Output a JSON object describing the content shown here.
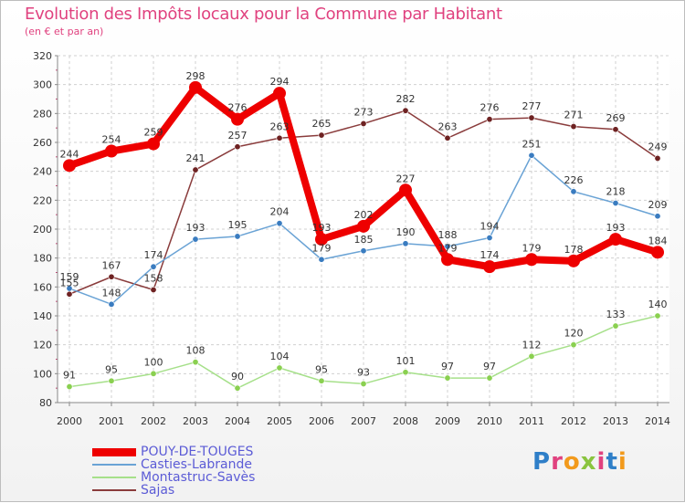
{
  "title": "Evolution des Impôts locaux pour la Commune par Habitant",
  "subtitle": "(en € et par an)",
  "logo": "Proxiti",
  "chart_data": {
    "type": "line",
    "x": [
      2000,
      2001,
      2002,
      2003,
      2004,
      2005,
      2006,
      2007,
      2008,
      2009,
      2010,
      2011,
      2012,
      2013,
      2014
    ],
    "ylim": [
      80,
      320
    ],
    "yticks": [
      80,
      100,
      120,
      140,
      160,
      180,
      200,
      220,
      240,
      260,
      280,
      300,
      320
    ],
    "grid": true,
    "legend_position": "bottom-left",
    "series": [
      {
        "name": "POUY-DE-TOUGES",
        "color": "#ee0000",
        "point_color": "#ee0000",
        "width": 8,
        "values": [
          244,
          254,
          259,
          298,
          276,
          294,
          193,
          202,
          227,
          179,
          174,
          179,
          178,
          193,
          184
        ]
      },
      {
        "name": "Casties-Labrande",
        "color": "#6aa3d5",
        "point_color": "#3a7cc0",
        "width": 1.5,
        "values": [
          159,
          148,
          174,
          193,
          195,
          204,
          179,
          185,
          190,
          188,
          194,
          251,
          226,
          218,
          209
        ]
      },
      {
        "name": "Montastruc-Savès",
        "color": "#a6e08a",
        "point_color": "#8ad050",
        "width": 1.5,
        "values": [
          91,
          95,
          100,
          108,
          90,
          104,
          95,
          93,
          101,
          97,
          97,
          112,
          120,
          133,
          140
        ]
      },
      {
        "name": "Sajas",
        "color": "#8a3c3c",
        "point_color": "#6e2222",
        "width": 1.5,
        "values": [
          155,
          167,
          158,
          241,
          257,
          263,
          265,
          273,
          282,
          263,
          276,
          277,
          271,
          269,
          249
        ]
      }
    ]
  }
}
